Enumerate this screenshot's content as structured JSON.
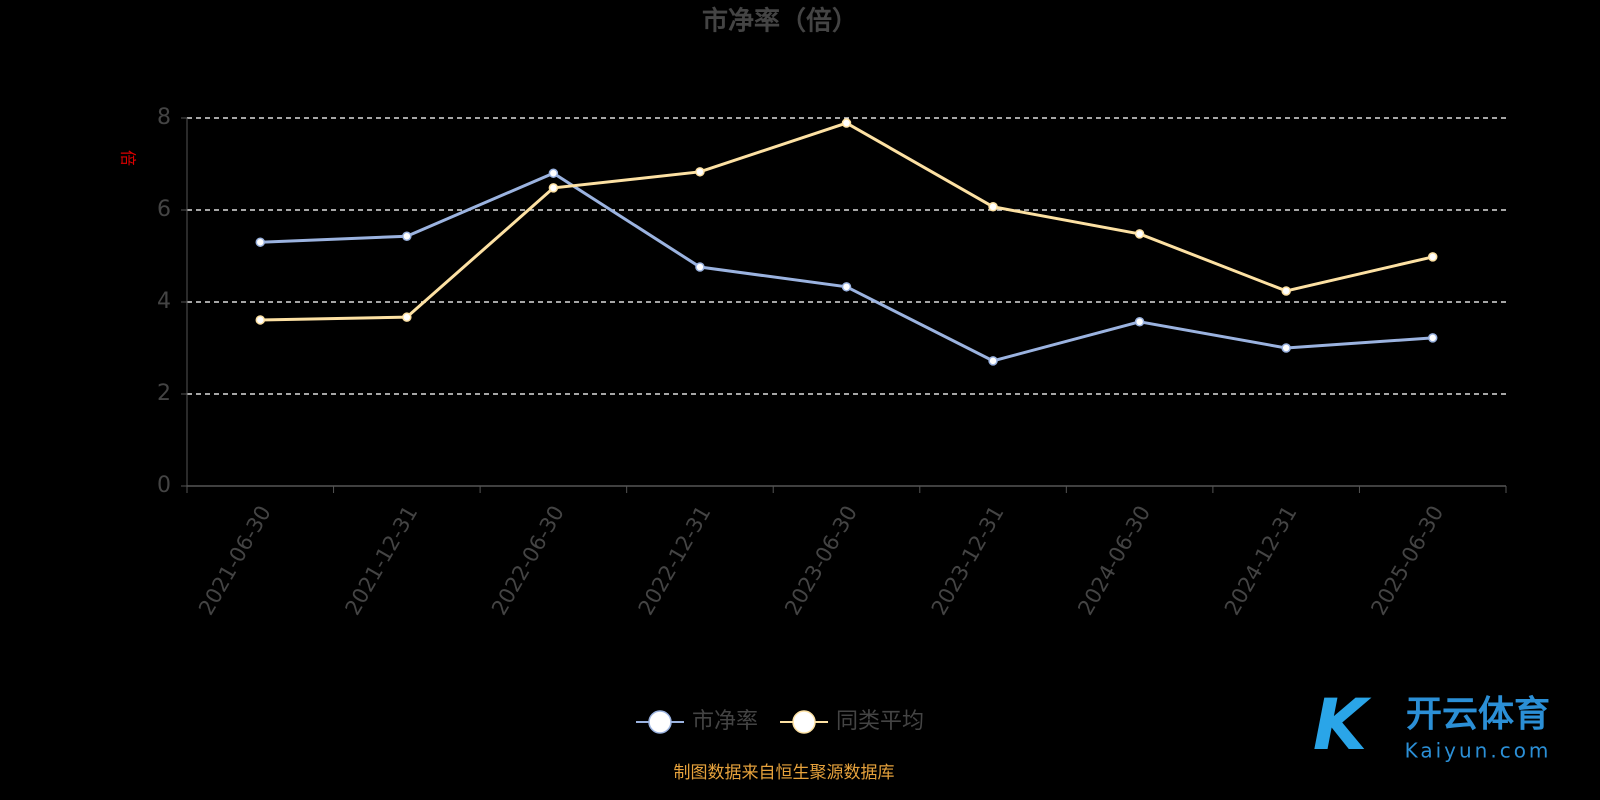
{
  "chart_data": {
    "type": "line",
    "title": "市净率（倍）",
    "y_label": "倍",
    "categories": [
      "2021-06-30",
      "2021-12-31",
      "2022-06-30",
      "2022-12-31",
      "2023-06-30",
      "2023-12-31",
      "2024-06-30",
      "2024-12-31",
      "2025-06-30"
    ],
    "series": [
      {
        "name": "市净率",
        "color": "#9bb3e0",
        "values": [
          5.3,
          5.43,
          6.8,
          4.76,
          4.33,
          2.72,
          3.57,
          3.0,
          3.22
        ]
      },
      {
        "name": "同类平均",
        "color": "#fde1a3",
        "values": [
          3.61,
          3.67,
          6.48,
          6.83,
          7.89,
          6.07,
          5.48,
          4.24,
          4.98
        ]
      }
    ],
    "ylim": [
      0,
      8
    ],
    "yticks": [
      0,
      2,
      4,
      6,
      8
    ],
    "grid": true,
    "source": "制图数据来自恒生聚源数据库",
    "watermark": {
      "name": "开云体育",
      "site": "Kaiyun.com"
    }
  }
}
